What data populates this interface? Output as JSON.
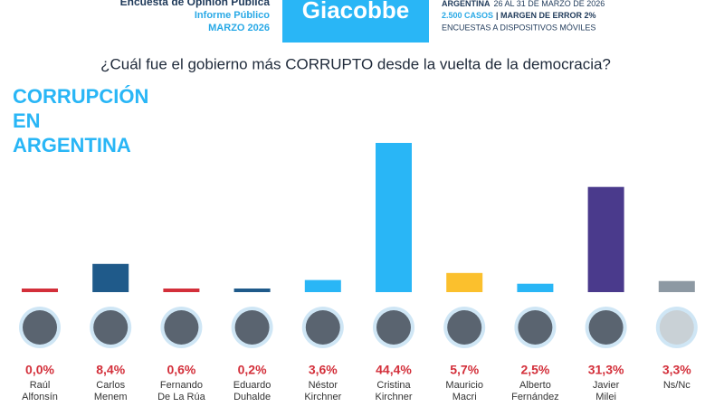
{
  "header": {
    "left": [
      "Encuesta de Opinión Pública",
      "Informe Público",
      "MARZO 2026"
    ],
    "brand": "Giacobbe",
    "right": {
      "place": "ARGENTINA",
      "dates": "26 AL 31 DE MARZO DE 2026",
      "cases": "2.500 CASOS",
      "margin": "| MARGEN DE ERROR 2%",
      "method": "ENCUESTAS A DISPOSITIVOS MÓVILES"
    }
  },
  "chart_data": {
    "type": "bar",
    "title": "¿Cuál fue el gobierno más CORRUPTO desde la vuelta de la democracia?",
    "subtitle": [
      "CORRUPCIÓN",
      "EN",
      "ARGENTINA"
    ],
    "categories": [
      [
        "Raúl",
        "Alfonsín"
      ],
      [
        "Carlos",
        "Menem"
      ],
      [
        "Fernando",
        "De La Rúa"
      ],
      [
        "Eduardo",
        "Duhalde"
      ],
      [
        "Néstor",
        "Kirchner"
      ],
      [
        "Cristina",
        "Kirchner"
      ],
      [
        "Mauricio",
        "Macri"
      ],
      [
        "Alberto",
        "Fernández"
      ],
      [
        "Javier",
        "Milei"
      ],
      [
        "Ns/Nc"
      ]
    ],
    "values": [
      0.0,
      8.4,
      0.6,
      0.2,
      3.6,
      44.4,
      5.7,
      2.5,
      31.3,
      3.3
    ],
    "value_labels": [
      "0,0%",
      "8,4%",
      "0,6%",
      "0,2%",
      "3,6%",
      "44,4%",
      "5,7%",
      "2,5%",
      "31,3%",
      "3,3%"
    ],
    "colors": [
      "#d32f3a",
      "#1f5a8a",
      "#d32f3a",
      "#1f5a8a",
      "#29b6f6",
      "#29b6f6",
      "#fbc02d",
      "#29b6f6",
      "#4a3a8c",
      "#8d99a3"
    ]
  }
}
